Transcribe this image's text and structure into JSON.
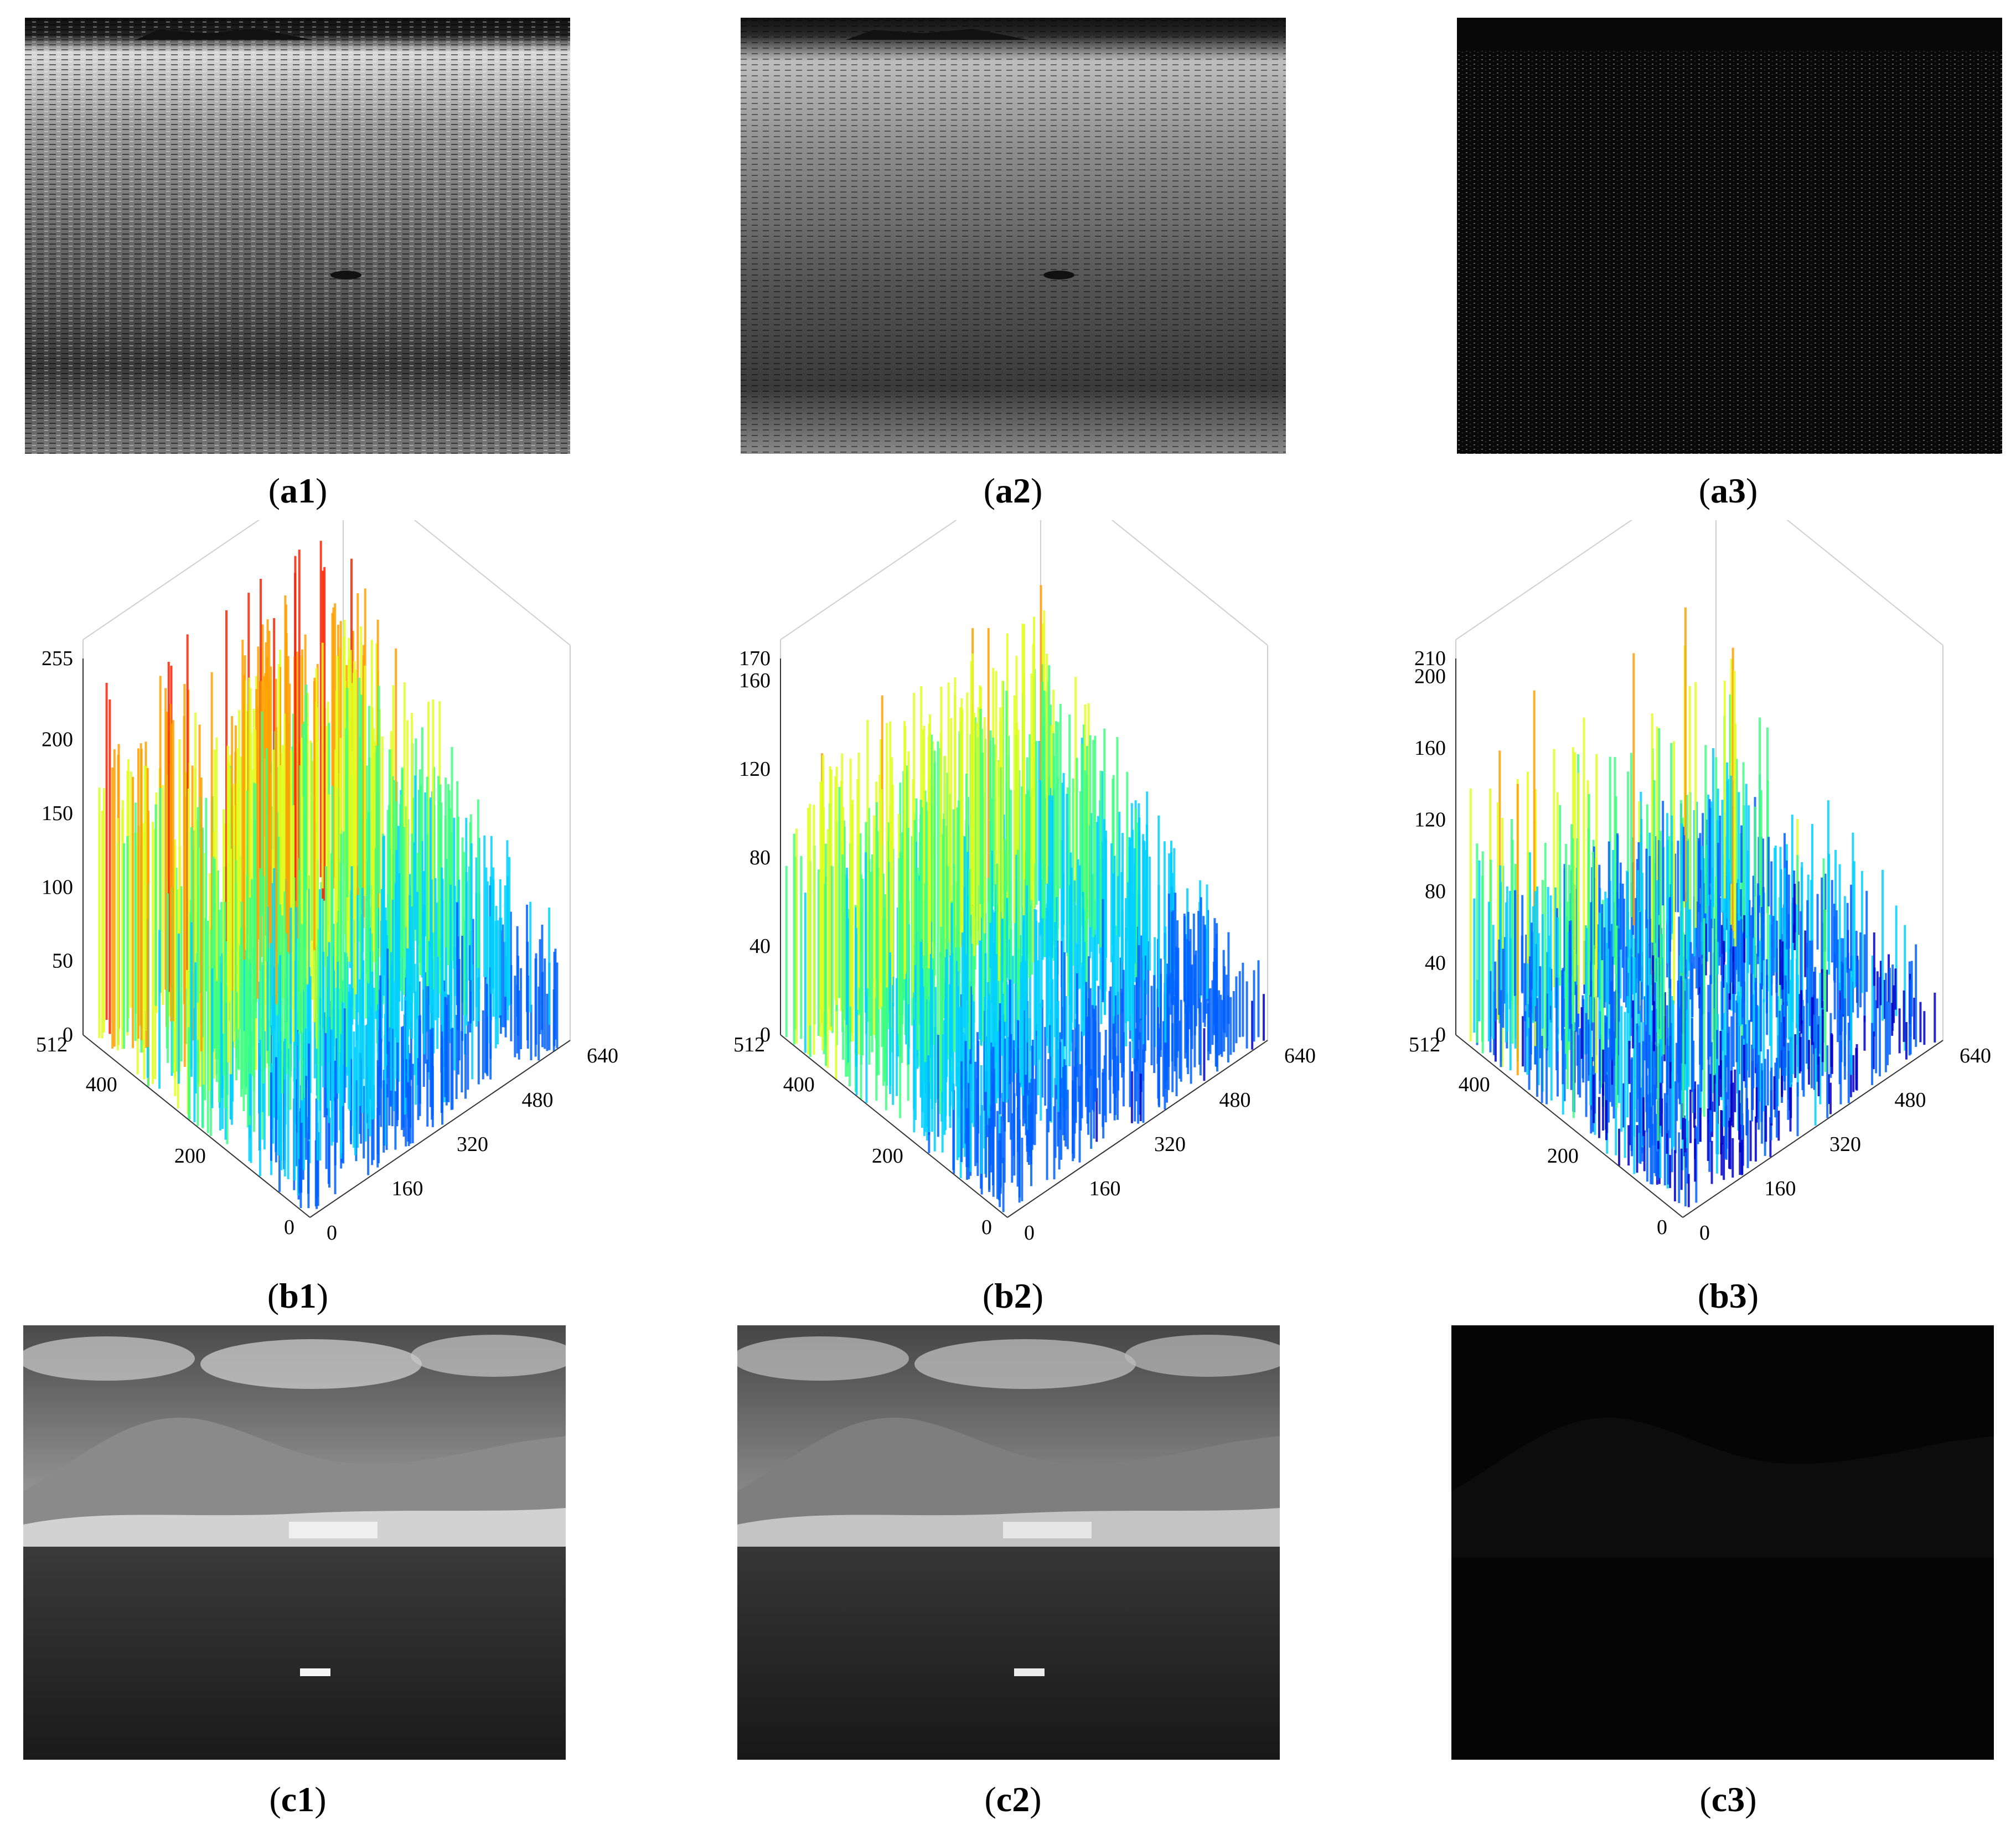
{
  "captions": {
    "a1": [
      "(",
      "a1",
      ")"
    ],
    "a2": [
      "(",
      "a2",
      ")"
    ],
    "a3": [
      "(",
      "a3",
      ")"
    ],
    "b1": [
      "(",
      "b1",
      ")"
    ],
    "b2": [
      "(",
      "b2",
      ")"
    ],
    "b3": [
      "(",
      "b3",
      ")"
    ],
    "c1": [
      "(",
      "c1",
      ")"
    ],
    "c2": [
      "(",
      "c2",
      ")"
    ],
    "c3": [
      "(",
      "c3",
      ")"
    ]
  },
  "chart_data": [
    {
      "id": "b1",
      "type": "surface3d",
      "zticks": [
        "0",
        "50",
        "100",
        "150",
        "200",
        "255"
      ],
      "zlim": [
        0,
        255
      ],
      "yticks": [
        "0",
        "200",
        "400",
        "512"
      ],
      "ylim": [
        0,
        512
      ],
      "xticks": [
        "0",
        "160",
        "320",
        "480",
        "640"
      ],
      "xlim": [
        0,
        640
      ],
      "colormap": [
        "#0000c8",
        "#0060ff",
        "#00d0ff",
        "#40ff80",
        "#e0ff20",
        "#ffa000",
        "#ff2000"
      ]
    },
    {
      "id": "b2",
      "type": "surface3d",
      "zticks": [
        "0",
        "40",
        "80",
        "120",
        "160",
        "170"
      ],
      "zlim": [
        0,
        170
      ],
      "yticks": [
        "0",
        "200",
        "400",
        "512"
      ],
      "ylim": [
        0,
        512
      ],
      "xticks": [
        "0",
        "160",
        "320",
        "480",
        "640"
      ],
      "xlim": [
        0,
        640
      ],
      "colormap": [
        "#0000c8",
        "#0060ff",
        "#00d0ff",
        "#40ff80",
        "#e0ff20",
        "#ffa000",
        "#ff2000"
      ]
    },
    {
      "id": "b3",
      "type": "surface3d",
      "zticks": [
        "0",
        "40",
        "80",
        "120",
        "160",
        "200",
        "210"
      ],
      "zlim": [
        0,
        210
      ],
      "yticks": [
        "0",
        "200",
        "400",
        "512"
      ],
      "ylim": [
        0,
        512
      ],
      "xticks": [
        "0",
        "160",
        "320",
        "480",
        "640"
      ],
      "xlim": [
        0,
        640
      ],
      "colormap": [
        "#0000c8",
        "#0060ff",
        "#00d0ff",
        "#40ff80",
        "#e0ff20",
        "#ffa000",
        "#ff2000"
      ]
    }
  ]
}
